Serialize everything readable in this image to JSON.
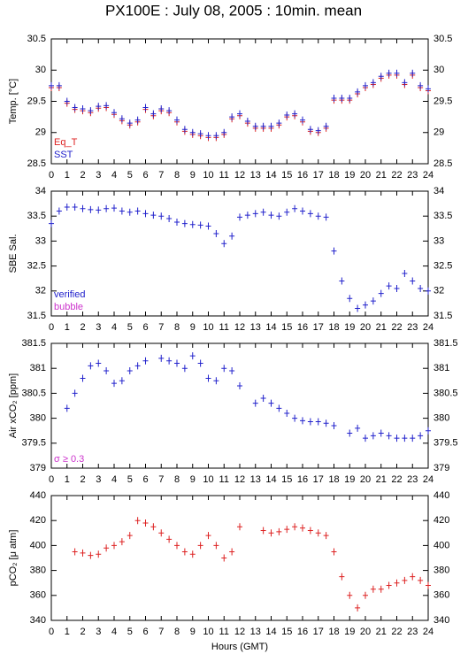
{
  "chart_data": [
    {
      "type": "scatter",
      "title": "PX100E : July 08, 2005 : 10min. mean",
      "ylabel": "Temp. [°C]",
      "x": [
        0,
        0.5,
        1,
        1.5,
        2,
        2.5,
        3,
        3.5,
        4,
        4.5,
        5,
        5.5,
        6,
        6.5,
        7,
        7.5,
        8,
        8.5,
        9,
        9.5,
        10,
        10.5,
        11,
        11.5,
        12,
        12.5,
        13,
        13.5,
        14,
        14.5,
        15,
        15.5,
        16,
        16.5,
        17,
        17.5,
        18,
        18.5,
        19,
        19.5,
        20,
        20.5,
        21,
        21.5,
        22,
        22.5,
        23,
        23.5,
        24
      ],
      "series": [
        {
          "name": "Eq_T",
          "color": "#dd2222",
          "values": [
            29.72,
            29.72,
            29.47,
            29.37,
            29.35,
            29.32,
            29.39,
            29.4,
            29.29,
            29.19,
            29.12,
            29.17,
            29.37,
            29.27,
            29.35,
            29.32,
            29.17,
            29.02,
            28.97,
            28.95,
            28.92,
            28.92,
            28.97,
            29.22,
            29.27,
            29.15,
            29.07,
            29.07,
            29.07,
            29.12,
            29.25,
            29.27,
            29.17,
            29.02,
            29.0,
            29.07,
            29.52,
            29.52,
            29.52,
            29.62,
            29.72,
            29.77,
            29.87,
            29.92,
            29.92,
            29.77,
            29.92,
            29.72,
            29.67
          ]
        },
        {
          "name": "SST",
          "color": "#2222cc",
          "values": [
            29.75,
            29.75,
            29.5,
            29.4,
            29.38,
            29.35,
            29.42,
            29.43,
            29.32,
            29.22,
            29.15,
            29.2,
            29.4,
            29.3,
            29.38,
            29.35,
            29.2,
            29.05,
            29.0,
            28.98,
            28.95,
            28.95,
            29.0,
            29.25,
            29.3,
            29.18,
            29.1,
            29.1,
            29.1,
            29.15,
            29.28,
            29.3,
            29.2,
            29.05,
            29.03,
            29.1,
            29.55,
            29.55,
            29.55,
            29.65,
            29.75,
            29.8,
            29.9,
            29.95,
            29.95,
            29.8,
            29.95,
            29.75,
            29.7
          ]
        }
      ],
      "xlim": [
        0,
        24
      ],
      "xticks": [
        0,
        1,
        2,
        3,
        4,
        5,
        6,
        7,
        8,
        9,
        10,
        11,
        12,
        13,
        14,
        15,
        16,
        17,
        18,
        19,
        20,
        21,
        22,
        23,
        24
      ],
      "ylim": [
        28.5,
        30.5
      ],
      "yticks": [
        28.5,
        29,
        29.5,
        30,
        30.5
      ]
    },
    {
      "type": "scatter",
      "ylabel": "SBE Sal.",
      "x": [
        0,
        0.5,
        1,
        1.5,
        2,
        2.5,
        3,
        3.5,
        4,
        4.5,
        5,
        5.5,
        6,
        6.5,
        7,
        7.5,
        8,
        8.5,
        9,
        9.5,
        10,
        10.5,
        11,
        11.5,
        12,
        12.5,
        13,
        13.5,
        14,
        14.5,
        15,
        15.5,
        16,
        16.5,
        17,
        17.5,
        18,
        18.5,
        19,
        19.5,
        20,
        20.5,
        21,
        21.5,
        22,
        22.5,
        23,
        23.5,
        24
      ],
      "series": [
        {
          "name": "verified",
          "color": "#2222cc",
          "values": [
            33.35,
            33.6,
            33.68,
            33.68,
            33.65,
            33.63,
            33.62,
            33.65,
            33.66,
            33.6,
            33.58,
            33.6,
            33.55,
            33.52,
            33.5,
            33.45,
            33.38,
            33.35,
            33.33,
            33.32,
            33.3,
            33.15,
            32.95,
            33.1,
            33.48,
            33.52,
            33.55,
            33.58,
            33.52,
            33.5,
            33.58,
            33.65,
            33.6,
            33.55,
            33.5,
            33.48,
            32.8,
            32.2,
            31.85,
            31.65,
            31.72,
            31.8,
            31.95,
            32.1,
            32.05,
            32.35,
            32.2,
            32.05,
            32.0
          ]
        }
      ],
      "annotations": [
        {
          "text": "bubble",
          "color": "#cc33cc"
        }
      ],
      "xlim": [
        0,
        24
      ],
      "xticks": [
        0,
        1,
        2,
        3,
        4,
        5,
        6,
        7,
        8,
        9,
        10,
        11,
        12,
        13,
        14,
        15,
        16,
        17,
        18,
        19,
        20,
        21,
        22,
        23,
        24
      ],
      "ylim": [
        31.5,
        34
      ],
      "yticks": [
        31.5,
        32,
        32.5,
        33,
        33.5,
        34
      ]
    },
    {
      "type": "scatter",
      "ylabel": "Air xCO₂ [ppm]",
      "x": [
        0,
        0.5,
        1,
        1.5,
        2,
        2.5,
        3,
        3.5,
        4,
        4.5,
        5,
        5.5,
        6,
        6.5,
        7,
        7.5,
        8,
        8.5,
        9,
        9.5,
        10,
        10.5,
        11,
        11.5,
        12,
        12.5,
        13,
        13.5,
        14,
        14.5,
        15,
        15.5,
        16,
        16.5,
        17,
        17.5,
        18,
        18.5,
        19,
        19.5,
        20,
        20.5,
        21,
        21.5,
        22,
        22.5,
        23,
        23.5,
        24
      ],
      "series": [
        {
          "name": "Air xCO2",
          "color": "#2222cc",
          "values": [
            null,
            null,
            380.2,
            380.5,
            380.8,
            381.05,
            381.1,
            380.95,
            380.7,
            380.75,
            380.95,
            381.05,
            381.15,
            null,
            381.2,
            381.15,
            381.1,
            381.0,
            381.25,
            381.1,
            380.8,
            380.75,
            381.0,
            380.95,
            380.65,
            null,
            380.3,
            380.4,
            380.3,
            380.2,
            380.1,
            380.0,
            379.95,
            379.93,
            379.93,
            379.9,
            379.85,
            null,
            379.7,
            379.8,
            379.6,
            379.65,
            379.7,
            379.65,
            379.6,
            379.6,
            379.6,
            379.65,
            379.75
          ]
        }
      ],
      "annotations": [
        {
          "text": "σ ≥ 0.3",
          "color": "#cc33cc"
        }
      ],
      "xlim": [
        0,
        24
      ],
      "xticks": [
        0,
        1,
        2,
        3,
        4,
        5,
        6,
        7,
        8,
        9,
        10,
        11,
        12,
        13,
        14,
        15,
        16,
        17,
        18,
        19,
        20,
        21,
        22,
        23,
        24
      ],
      "ylim": [
        379,
        381.5
      ],
      "yticks": [
        379,
        379.5,
        380,
        380.5,
        381,
        381.5
      ]
    },
    {
      "type": "scatter",
      "ylabel": "pCO₂ [μ atm]",
      "xlabel": "Hours (GMT)",
      "x": [
        0,
        0.5,
        1,
        1.5,
        2,
        2.5,
        3,
        3.5,
        4,
        4.5,
        5,
        5.5,
        6,
        6.5,
        7,
        7.5,
        8,
        8.5,
        9,
        9.5,
        10,
        10.5,
        11,
        11.5,
        12,
        12.5,
        13,
        13.5,
        14,
        14.5,
        15,
        15.5,
        16,
        16.5,
        17,
        17.5,
        18,
        18.5,
        19,
        19.5,
        20,
        20.5,
        21,
        21.5,
        22,
        22.5,
        23,
        23.5,
        24
      ],
      "series": [
        {
          "name": "pCO2",
          "color": "#dd2222",
          "values": [
            null,
            null,
            null,
            395,
            394,
            392,
            393,
            398,
            400,
            403,
            408,
            420,
            418,
            415,
            410,
            405,
            400,
            395,
            393,
            400,
            408,
            400,
            390,
            395,
            415,
            null,
            null,
            412,
            410,
            411,
            413,
            415,
            414,
            412,
            410,
            408,
            395,
            375,
            360,
            350,
            360,
            365,
            365,
            368,
            370,
            372,
            375,
            372,
            368
          ]
        }
      ],
      "xlim": [
        0,
        24
      ],
      "xticks": [
        0,
        1,
        2,
        3,
        4,
        5,
        6,
        7,
        8,
        9,
        10,
        11,
        12,
        13,
        14,
        15,
        16,
        17,
        18,
        19,
        20,
        21,
        22,
        23,
        24
      ],
      "ylim": [
        340,
        440
      ],
      "yticks": [
        340,
        360,
        380,
        400,
        420,
        440
      ]
    }
  ]
}
